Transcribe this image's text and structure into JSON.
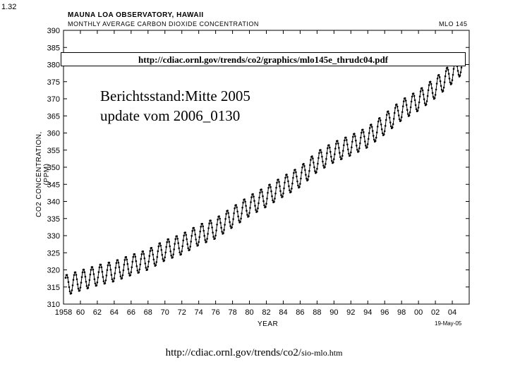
{
  "slide_number": "1.32",
  "source_url": "http://cdiac.ornl.gov/trends/co2/graphics/mlo145e_thrudc04.pdf",
  "status": {
    "line1": "Berichtsstand:Mitte 2005",
    "line2": "update vom 2006_0130"
  },
  "bottom_url": {
    "main": "http://cdiac.ornl.gov/trends/co2/",
    "small": "sio-mlo.htm"
  },
  "chart_data": {
    "type": "line",
    "title": "MAUNA LOA OBSERVATORY, HAWAII",
    "subtitle": "MONTHLY AVERAGE CARBON DIOXIDE CONCENTRATION",
    "code_label": "MLO 145",
    "date_stamp": "19-May-05",
    "xlabel": "YEAR",
    "ylabel": "CO2 CONCENTRATION, (PPM)",
    "xlim": [
      1958,
      2006
    ],
    "ylim": [
      310,
      390
    ],
    "yticks": [
      "310",
      "315",
      "320",
      "325",
      "330",
      "335",
      "340",
      "345",
      "350",
      "355",
      "360",
      "365",
      "370",
      "375",
      "380",
      "385",
      "390"
    ],
    "xticks": [
      {
        "x": 1958,
        "label": "1958"
      },
      {
        "x": 1960,
        "label": "60"
      },
      {
        "x": 1962,
        "label": "62"
      },
      {
        "x": 1964,
        "label": "64"
      },
      {
        "x": 1966,
        "label": "66"
      },
      {
        "x": 1968,
        "label": "68"
      },
      {
        "x": 1970,
        "label": "70"
      },
      {
        "x": 1972,
        "label": "72"
      },
      {
        "x": 1974,
        "label": "74"
      },
      {
        "x": 1976,
        "label": "76"
      },
      {
        "x": 1978,
        "label": "78"
      },
      {
        "x": 1980,
        "label": "80"
      },
      {
        "x": 1982,
        "label": "82"
      },
      {
        "x": 1984,
        "label": "84"
      },
      {
        "x": 1986,
        "label": "86"
      },
      {
        "x": 1988,
        "label": "88"
      },
      {
        "x": 1990,
        "label": "90"
      },
      {
        "x": 1992,
        "label": "92"
      },
      {
        "x": 1994,
        "label": "94"
      },
      {
        "x": 1996,
        "label": "96"
      },
      {
        "x": 1998,
        "label": "98"
      },
      {
        "x": 2000,
        "label": "00"
      },
      {
        "x": 2002,
        "label": "02"
      },
      {
        "x": 2004,
        "label": "04"
      }
    ],
    "series": [
      {
        "annual_trend": {
          "years": [
            1958,
            1960,
            1962,
            1964,
            1966,
            1968,
            1970,
            1972,
            1974,
            1976,
            1978,
            1980,
            1982,
            1984,
            1986,
            1988,
            1990,
            1992,
            1994,
            1996,
            1998,
            2000,
            2002,
            2004,
            2005
          ],
          "ppm": [
            315.3,
            316.9,
            318.4,
            319.6,
            321.4,
            323.0,
            325.7,
            327.5,
            330.2,
            332.1,
            335.4,
            338.7,
            341.4,
            344.4,
            347.2,
            351.6,
            354.4,
            356.4,
            358.8,
            362.6,
            366.7,
            369.5,
            373.2,
            377.5,
            379.8
          ]
        },
        "seasonal_amplitude_ppm": 3.0,
        "data_start": 1958.25,
        "data_end": 2005.2
      }
    ],
    "grid": false
  }
}
